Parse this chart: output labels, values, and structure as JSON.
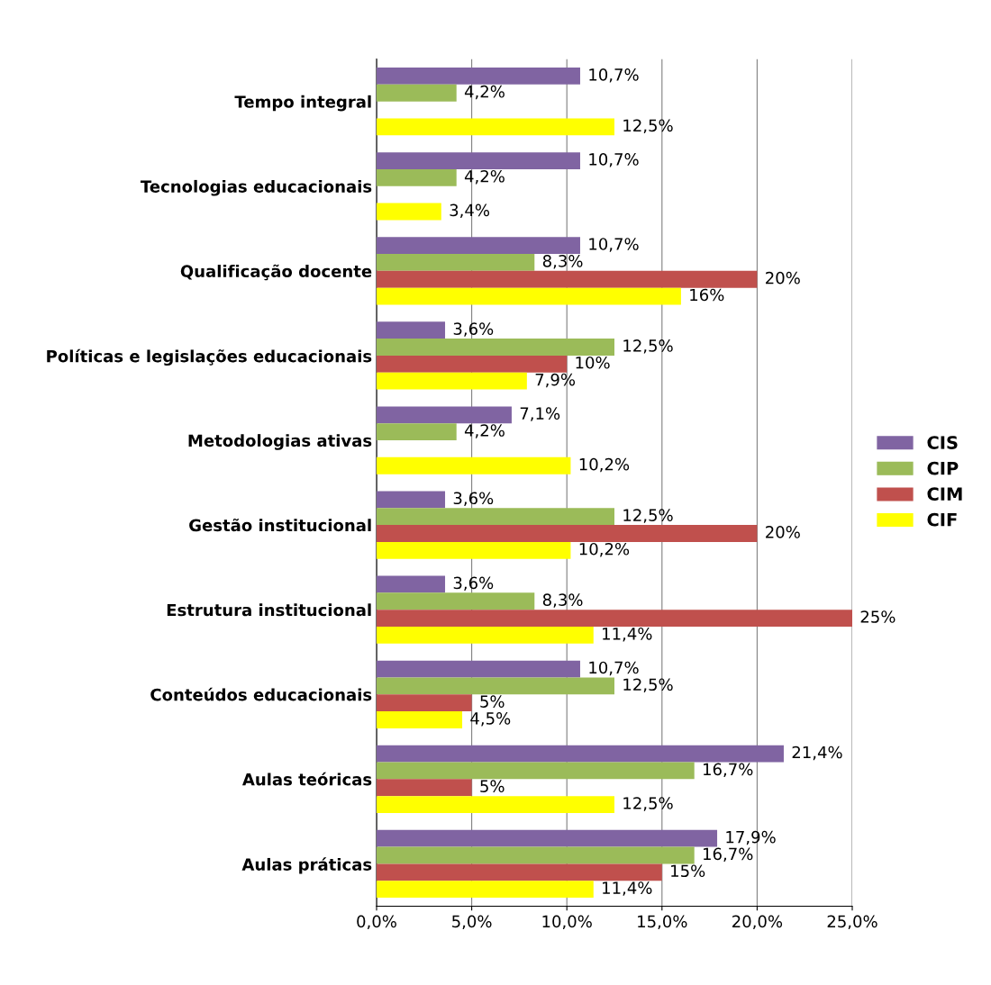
{
  "chart_data": {
    "type": "bar",
    "orientation": "horizontal",
    "categories": [
      "Tempo integral",
      "Tecnologias educacionais",
      "Qualificação docente",
      "Políticas e legislações educacionais",
      "Metodologias ativas",
      "Gestão institucional",
      "Estrutura institucional",
      "Conteúdos educacionais",
      "Aulas teóricas",
      "Aulas práticas"
    ],
    "series": [
      {
        "name": "CIS",
        "color": "#8064a2",
        "values": [
          10.7,
          10.7,
          10.7,
          3.6,
          7.1,
          3.6,
          3.6,
          10.7,
          21.4,
          17.9
        ],
        "value_labels": [
          "10,7%",
          "10,7%",
          "10,7%",
          "3,6%",
          "7,1%",
          "3,6%",
          "3,6%",
          "10,7%",
          "21,4%",
          "17,9%"
        ]
      },
      {
        "name": "CIP",
        "color": "#9bbb59",
        "values": [
          4.2,
          4.2,
          8.3,
          12.5,
          4.2,
          12.5,
          8.3,
          12.5,
          16.7,
          16.7
        ],
        "value_labels": [
          "4,2%",
          "4,2%",
          "8,3%",
          "12,5%",
          "4,2%",
          "12,5%",
          "8,3%",
          "12,5%",
          "16,7%",
          "16,7%"
        ]
      },
      {
        "name": "CIM",
        "color": "#c0504d",
        "values": [
          null,
          null,
          20,
          10,
          null,
          20,
          25,
          5,
          5,
          15
        ],
        "value_labels": [
          null,
          null,
          "20%",
          "10%",
          null,
          "20%",
          "25%",
          "5%",
          "5%",
          "15%"
        ]
      },
      {
        "name": "CIF",
        "color": "#ffff00",
        "values": [
          12.5,
          3.4,
          16,
          7.9,
          10.2,
          10.2,
          11.4,
          4.5,
          12.5,
          11.4
        ],
        "value_labels": [
          "12,5%",
          "3,4%",
          "16%",
          "7,9%",
          "10,2%",
          "10,2%",
          "11,4%",
          "4,5%",
          "12,5%",
          "11,4%"
        ]
      }
    ],
    "xlim": [
      0,
      25
    ],
    "xticks": [
      {
        "value": 0,
        "label": "0,0%"
      },
      {
        "value": 5,
        "label": "5,0%"
      },
      {
        "value": 10,
        "label": "10,0%"
      },
      {
        "value": 15,
        "label": "15,0%"
      },
      {
        "value": 20,
        "label": "20,0%"
      },
      {
        "value": 25,
        "label": "25,0%"
      }
    ],
    "grid": "x",
    "legend": "right"
  }
}
